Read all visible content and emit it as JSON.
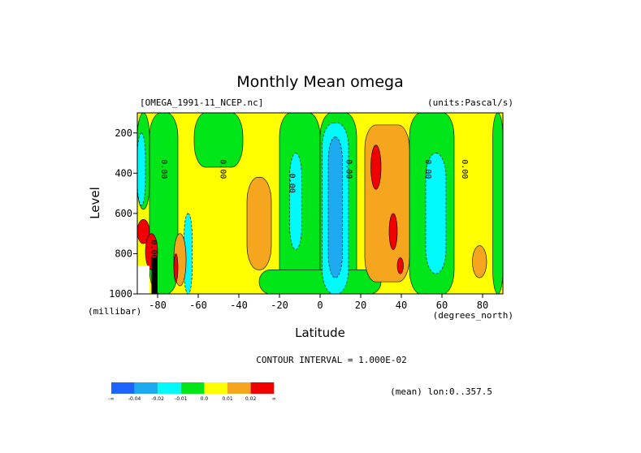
{
  "header": {
    "title": "Monthly Mean omega",
    "file_label": "[OMEGA_1991-11_NCEP.nc]",
    "units_label": "(units:Pascal/s)"
  },
  "footer": {
    "contour_interval": "CONTOUR INTERVAL = 1.000E-02",
    "mean_note": "(mean) lon:0..357.5"
  },
  "colors": {
    "blue_dark": "#1e64ff",
    "blue": "#1eaaf0",
    "cyan": "#00fafa",
    "green": "#00e619",
    "yellow": "#ffff00",
    "orange": "#f5a51e",
    "red": "#f00000"
  },
  "chart_data": {
    "type": "heatmap",
    "title": "Monthly Mean omega",
    "xlabel": "Latitude",
    "ylabel": "Level",
    "x_unit": "(degrees_north)",
    "y_unit": "(millibar)",
    "xlim": [
      -90,
      90
    ],
    "ylim": [
      1000,
      100
    ],
    "x_ticks": [
      -80,
      -60,
      -40,
      -20,
      0,
      20,
      40,
      60,
      80
    ],
    "y_ticks": [
      200,
      400,
      600,
      800,
      1000
    ],
    "contour_labels": [
      {
        "text": "0.00",
        "lat": -78,
        "level": 380
      },
      {
        "text": "0.00",
        "lat": -49,
        "level": 380
      },
      {
        "text": "0.00",
        "lat": -15,
        "level": 450
      },
      {
        "text": "0.00",
        "lat": 13,
        "level": 380
      },
      {
        "text": "0.00",
        "lat": 52,
        "level": 380
      },
      {
        "text": "0.00",
        "lat": 70,
        "level": 380
      },
      {
        "text": "0.00",
        "lat": -83,
        "level": 780
      }
    ],
    "regions": [
      {
        "cls": "yellow",
        "lat": [
          -90,
          90
        ],
        "level": [
          100,
          1000
        ]
      },
      {
        "cls": "green",
        "lat": [
          -84,
          -70
        ],
        "level": [
          100,
          1000
        ]
      },
      {
        "cls": "green",
        "lat": [
          -62,
          -38
        ],
        "level": [
          100,
          370
        ]
      },
      {
        "cls": "green",
        "lat": [
          -20,
          0
        ],
        "level": [
          100,
          1000
        ]
      },
      {
        "cls": "green",
        "lat": [
          0,
          18
        ],
        "level": [
          100,
          1000
        ]
      },
      {
        "cls": "green",
        "lat": [
          44,
          66
        ],
        "level": [
          100,
          1000
        ]
      },
      {
        "cls": "green",
        "lat": [
          -30,
          30
        ],
        "level": [
          880,
          1000
        ]
      },
      {
        "cls": "green",
        "lat": [
          85,
          90
        ],
        "level": [
          100,
          1000
        ]
      },
      {
        "cls": "green",
        "lat": [
          -90,
          -84
        ],
        "level": [
          100,
          580
        ]
      },
      {
        "cls": "cyan",
        "lat": [
          -90,
          -86
        ],
        "level": [
          200,
          560
        ]
      },
      {
        "cls": "cyan",
        "lat": [
          -15,
          -9
        ],
        "level": [
          300,
          780
        ]
      },
      {
        "cls": "cyan",
        "lat": [
          -67,
          -63
        ],
        "level": [
          600,
          1000
        ]
      },
      {
        "cls": "cyan",
        "lat": [
          1,
          14
        ],
        "level": [
          150,
          1000
        ]
      },
      {
        "cls": "cyan",
        "lat": [
          52,
          62
        ],
        "level": [
          300,
          900
        ]
      },
      {
        "cls": "blue",
        "lat": [
          4,
          11
        ],
        "level": [
          220,
          920
        ]
      },
      {
        "cls": "orange",
        "lat": [
          -36,
          -24
        ],
        "level": [
          420,
          880
        ]
      },
      {
        "cls": "orange",
        "lat": [
          22,
          44
        ],
        "level": [
          160,
          940
        ]
      },
      {
        "cls": "orange",
        "lat": [
          -72,
          -66
        ],
        "level": [
          700,
          960
        ]
      },
      {
        "cls": "orange",
        "lat": [
          75,
          82
        ],
        "level": [
          760,
          920
        ]
      },
      {
        "cls": "red",
        "lat": [
          25,
          30
        ],
        "level": [
          260,
          480
        ]
      },
      {
        "cls": "red",
        "lat": [
          34,
          38
        ],
        "level": [
          600,
          780
        ]
      },
      {
        "cls": "red",
        "lat": [
          38,
          41
        ],
        "level": [
          820,
          900
        ]
      },
      {
        "cls": "red",
        "lat": [
          -90,
          -84
        ],
        "level": [
          630,
          750
        ]
      },
      {
        "cls": "red",
        "lat": [
          -86,
          -80
        ],
        "level": [
          700,
          880
        ]
      },
      {
        "cls": "red",
        "lat": [
          -72,
          -70
        ],
        "level": [
          800,
          940
        ]
      }
    ],
    "colorbar": {
      "labels": [
        "-∞",
        "-0.04",
        "-0.02",
        "-0.01",
        "0.0",
        "0.01",
        "0.02",
        "∞"
      ],
      "colors": [
        "#1e64ff",
        "#1eaaf0",
        "#00fafa",
        "#00e619",
        "#ffff00",
        "#f5a51e",
        "#f00000"
      ]
    }
  }
}
